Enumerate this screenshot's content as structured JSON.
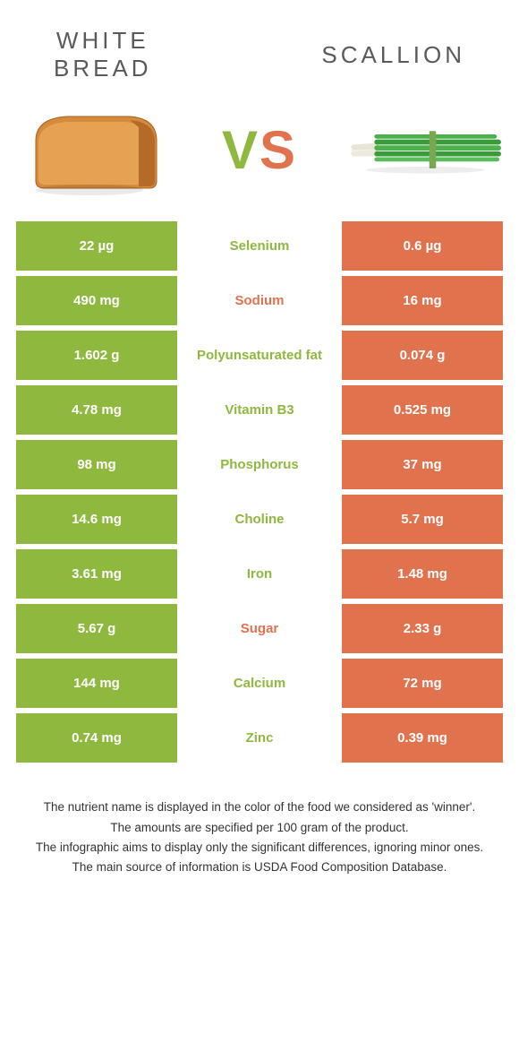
{
  "colors": {
    "left_bg": "#8fb83f",
    "right_bg": "#e1724e",
    "mid_left_text": "#8fb83f",
    "mid_right_text": "#e1724e",
    "title_text": "#5a5a5a",
    "value_text": "#ffffff",
    "footer_text": "#333333",
    "row_gap": 6
  },
  "header": {
    "left_title": "WHITE\nBREAD",
    "right_title": "SCALLION",
    "vs_v": "V",
    "vs_s": "S"
  },
  "rows": [
    {
      "left": "22 µg",
      "label": "Selenium",
      "right": "0.6 µg",
      "winner": "left"
    },
    {
      "left": "490 mg",
      "label": "Sodium",
      "right": "16 mg",
      "winner": "right"
    },
    {
      "left": "1.602 g",
      "label": "Polyunsaturated fat",
      "right": "0.074 g",
      "winner": "left"
    },
    {
      "left": "4.78 mg",
      "label": "Vitamin B3",
      "right": "0.525 mg",
      "winner": "left"
    },
    {
      "left": "98 mg",
      "label": "Phosphorus",
      "right": "37 mg",
      "winner": "left"
    },
    {
      "left": "14.6 mg",
      "label": "Choline",
      "right": "5.7 mg",
      "winner": "left"
    },
    {
      "left": "3.61 mg",
      "label": "Iron",
      "right": "1.48 mg",
      "winner": "left"
    },
    {
      "left": "5.67 g",
      "label": "Sugar",
      "right": "2.33 g",
      "winner": "right"
    },
    {
      "left": "144 mg",
      "label": "Calcium",
      "right": "72 mg",
      "winner": "left"
    },
    {
      "left": "0.74 mg",
      "label": "Zinc",
      "right": "0.39 mg",
      "winner": "left"
    }
  ],
  "footer": {
    "line1": "The nutrient name is displayed in the color of the food we considered as 'winner'.",
    "line2": "The amounts are specified per 100 gram of the product.",
    "line3": "The infographic aims to display only the significant differences, ignoring minor ones.",
    "line4": "The main source of information is USDA Food Composition Database."
  }
}
